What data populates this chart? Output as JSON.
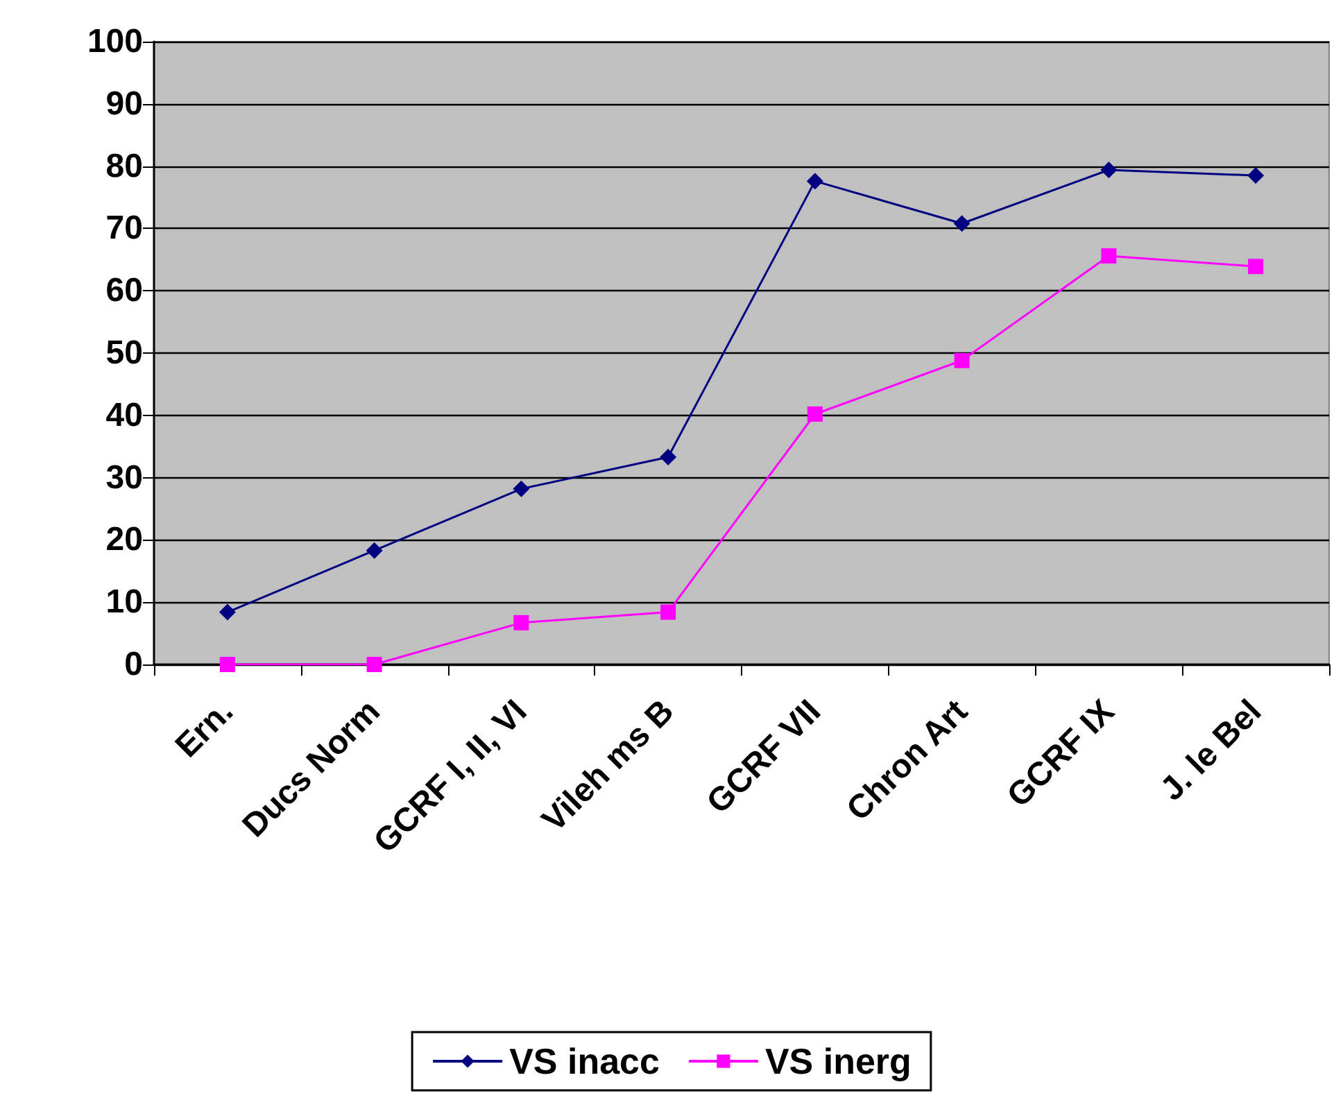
{
  "chart_data": {
    "type": "line",
    "categories": [
      "Ern.",
      "Ducs Norm",
      "GCRF I, II, VI",
      "Vileh ms B",
      "GCRF VII",
      "Chron Art",
      "GCRF IX",
      "J. le Bel"
    ],
    "series": [
      {
        "name": "VS inacc",
        "color": "#000080",
        "marker": "diamond",
        "values": [
          8.4,
          18.3,
          28.2,
          33.3,
          77.6,
          70.8,
          79.4,
          78.5
        ]
      },
      {
        "name": "VS inerg",
        "color": "#ff00ff",
        "marker": "square",
        "values": [
          0,
          0,
          6.7,
          8.4,
          40.2,
          48.8,
          65.6,
          63.9
        ]
      }
    ],
    "ylim": [
      0,
      100
    ],
    "yticks": [
      0,
      10,
      20,
      30,
      40,
      50,
      60,
      70,
      80,
      90,
      100
    ],
    "grid": "y",
    "legend": "bottom",
    "line_style": "solid"
  }
}
